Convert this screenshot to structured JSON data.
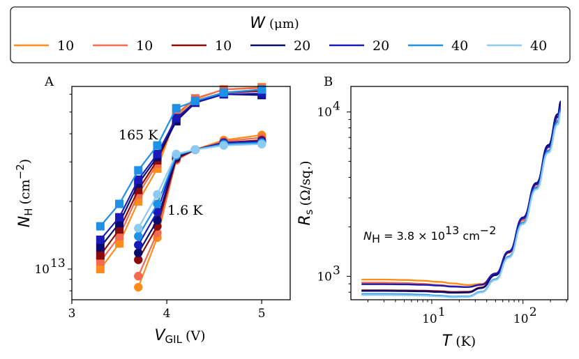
{
  "legend": {
    "title": "W",
    "title_unit": "(μm)",
    "entries": [
      {
        "label": "10",
        "color": "#ff8c1a"
      },
      {
        "label": "10",
        "color": "#f26b4f"
      },
      {
        "label": "10",
        "color": "#8b0a0a"
      },
      {
        "label": "20",
        "color": "#0a0a6e"
      },
      {
        "label": "20",
        "color": "#1a1ab8"
      },
      {
        "label": "40",
        "color": "#1e90e8"
      },
      {
        "label": "40",
        "color": "#8ccaf0"
      }
    ]
  },
  "chart_data": [
    {
      "type": "line",
      "panel": "A",
      "xlabel_main": "V",
      "xlabel_sub": "GIL",
      "xlabel_unit": "(V)",
      "ylabel_main": "N",
      "ylabel_sub": "H",
      "ylabel_unit": "(cm",
      "ylabel_exp": "−2",
      "ylabel_close": ")",
      "yscale": "log",
      "xlim": [
        3.0,
        5.3
      ],
      "ylim": [
        7300000000000.0,
        65000000000000.0
      ],
      "xticks": [
        {
          "value": 3,
          "label": "3"
        },
        {
          "value": 4,
          "label": "4"
        },
        {
          "value": 5,
          "label": "5"
        }
      ],
      "yticks": [
        {
          "value": 10000000000000.0,
          "base": "10",
          "exp": "13"
        }
      ],
      "annotations": [
        {
          "text": "165 K",
          "x": 3.65,
          "y": 39500000000000.0
        },
        {
          "text": "1.6 K",
          "x": 4.02,
          "y": 17800000000000.0
        }
      ],
      "series_165K": [
        {
          "name": "10 μm",
          "color": "#ff8c1a",
          "x": [
            3.3,
            3.5,
            3.7,
            3.9,
            4.1,
            4.3,
            4.6,
            5.0
          ],
          "y": [
            10000000000000.0,
            13000000000000.0,
            20000000000000.0,
            28000000000000.0,
            48000000000000.0,
            57000000000000.0,
            63000000000000.0,
            64500000000000.0
          ]
        },
        {
          "name": "10 μm",
          "color": "#f26b4f",
          "x": [
            3.3,
            3.5,
            3.7,
            3.9,
            4.1,
            4.3,
            4.6,
            5.0
          ],
          "y": [
            10800000000000.0,
            14000000000000.0,
            21500000000000.0,
            29500000000000.0,
            49000000000000.0,
            57500000000000.0,
            63000000000000.0,
            64000000000000.0
          ]
        },
        {
          "name": "10 μm",
          "color": "#8b0a0a",
          "x": [
            3.3,
            3.5,
            3.7,
            3.9,
            4.1,
            4.3,
            4.6,
            5.0
          ],
          "y": [
            11500000000000.0,
            15000000000000.0,
            22500000000000.0,
            30500000000000.0,
            46000000000000.0,
            56000000000000.0,
            61000000000000.0,
            62000000000000.0
          ]
        },
        {
          "name": "20 μm",
          "color": "#0a0a6e",
          "x": [
            3.3,
            3.5,
            3.7,
            3.9,
            4.1,
            4.3,
            4.6,
            5.0
          ],
          "y": [
            12500000000000.0,
            16000000000000.0,
            24000000000000.0,
            31500000000000.0,
            45500000000000.0,
            55000000000000.0,
            60000000000000.0,
            59500000000000.0
          ]
        },
        {
          "name": "20 μm",
          "color": "#1a1ab8",
          "x": [
            3.3,
            3.5,
            3.7,
            3.9,
            4.1,
            4.3,
            4.6,
            5.0
          ],
          "y": [
            13500000000000.0,
            17000000000000.0,
            25000000000000.0,
            32500000000000.0,
            47000000000000.0,
            55500000000000.0,
            60000000000000.0,
            60500000000000.0
          ]
        },
        {
          "name": "40 μm",
          "color": "#1e90e8",
          "x": [
            3.3,
            3.5,
            3.7,
            3.9,
            4.1,
            4.3,
            4.6,
            5.0
          ],
          "y": [
            15500000000000.0,
            19500000000000.0,
            27500000000000.0,
            35500000000000.0,
            52000000000000.0,
            56000000000000.0,
            61000000000000.0,
            63000000000000.0
          ]
        }
      ],
      "series_1p6K": [
        {
          "name": "10 μm",
          "color": "#ff8c1a",
          "x": [
            3.7,
            3.9,
            4.1,
            4.3,
            4.6,
            5.0
          ],
          "y": [
            8300000000000.0,
            13800000000000.0,
            31000000000000.0,
            34000000000000.0,
            37500000000000.0,
            39500000000000.0
          ]
        },
        {
          "name": "10 μm",
          "color": "#f26b4f",
          "x": [
            3.7,
            3.9,
            4.1,
            4.3,
            4.6,
            5.0
          ],
          "y": [
            9300000000000.0,
            14500000000000.0,
            30500000000000.0,
            34000000000000.0,
            37000000000000.0,
            38500000000000.0
          ]
        },
        {
          "name": "10 μm",
          "color": "#8b0a0a",
          "x": [
            3.7,
            3.9,
            4.1,
            4.3,
            4.6,
            5.0
          ],
          "y": [
            11000000000000.0,
            15500000000000.0,
            31000000000000.0,
            34000000000000.0,
            36500000000000.0,
            37500000000000.0
          ]
        },
        {
          "name": "20 μm",
          "color": "#0a0a6e",
          "x": [
            3.7,
            3.9,
            4.1,
            4.3,
            4.6,
            5.0
          ],
          "y": [
            11800000000000.0,
            16500000000000.0,
            31500000000000.0,
            34000000000000.0,
            36500000000000.0,
            37000000000000.0
          ]
        },
        {
          "name": "20 μm",
          "color": "#1a1ab8",
          "x": [
            3.7,
            3.9,
            4.1,
            4.3,
            4.6,
            5.0
          ],
          "y": [
            12800000000000.0,
            18000000000000.0,
            32000000000000.0,
            34000000000000.0,
            36500000000000.0,
            37000000000000.0
          ]
        },
        {
          "name": "40 μm",
          "color": "#1e90e8",
          "x": [
            3.7,
            3.9,
            4.1,
            4.3,
            4.6,
            5.0
          ],
          "y": [
            14000000000000.0,
            19500000000000.0,
            32000000000000.0,
            34000000000000.0,
            36000000000000.0,
            36500000000000.0
          ]
        },
        {
          "name": "40 μm",
          "color": "#8ccaf0",
          "x": [
            3.7,
            3.9,
            4.1,
            4.3,
            4.6,
            5.0
          ],
          "y": [
            15200000000000.0,
            21500000000000.0,
            32500000000000.0,
            34000000000000.0,
            35500000000000.0,
            36000000000000.0
          ]
        }
      ]
    },
    {
      "type": "line",
      "panel": "B",
      "xscale": "log",
      "yscale": "log",
      "xlabel_main": "T",
      "xlabel_unit": "(K)",
      "ylabel_main": "R",
      "ylabel_sub": "s",
      "ylabel_unit": "(Ω/sq.)",
      "xlim": [
        1.3,
        310
      ],
      "ylim": [
        720,
        14300
      ],
      "xticks": [
        {
          "value": 10,
          "base": "10",
          "exp": "1"
        },
        {
          "value": 100,
          "base": "10",
          "exp": "2"
        }
      ],
      "yticks": [
        {
          "value": 1000,
          "base": "10",
          "exp": "3"
        },
        {
          "value": 10000,
          "base": "10",
          "exp": "4"
        }
      ],
      "annotation": {
        "prefix": "N",
        "sub": "H",
        "mid": " = 3.8 × 10",
        "exp": "13",
        "unit": " cm",
        "unit_exp": "−2"
      },
      "x": [
        1.7,
        3,
        5,
        8,
        12,
        17,
        25,
        35,
        50,
        70,
        100,
        140,
        190,
        240,
        260
      ],
      "series": [
        {
          "name": "10 μm",
          "color": "#ff8c1a",
          "y": [
            955,
            955,
            950,
            940,
            925,
            905,
            885,
            900,
            1040,
            1400,
            2200,
            3500,
            5800,
            8800,
            10300
          ]
        },
        {
          "name": "10 μm",
          "color": "#f26b4f",
          "y": [
            915,
            915,
            910,
            900,
            885,
            870,
            860,
            885,
            1030,
            1390,
            2190,
            3500,
            5850,
            8900,
            10500
          ]
        },
        {
          "name": "10 μm",
          "color": "#8b0a0a",
          "y": [
            822,
            822,
            820,
            818,
            812,
            803,
            805,
            855,
            1020,
            1400,
            2250,
            3650,
            6150,
            9400,
            11200
          ]
        },
        {
          "name": "20 μm",
          "color": "#0a0a6e",
          "y": [
            815,
            815,
            813,
            810,
            803,
            794,
            797,
            848,
            1015,
            1410,
            2280,
            3700,
            6300,
            9700,
            11600
          ]
        },
        {
          "name": "20 μm",
          "color": "#1a1ab8",
          "y": [
            895,
            895,
            893,
            888,
            878,
            865,
            860,
            890,
            1040,
            1420,
            2250,
            3620,
            6100,
            9300,
            11000
          ]
        },
        {
          "name": "40 μm",
          "color": "#1e90e8",
          "y": [
            780,
            780,
            778,
            772,
            762,
            752,
            755,
            805,
            960,
            1320,
            2120,
            3450,
            5800,
            8700,
            10300
          ]
        },
        {
          "name": "40 μm",
          "color": "#8ccaf0",
          "y": [
            770,
            770,
            768,
            763,
            755,
            746,
            750,
            798,
            950,
            1300,
            2080,
            3380,
            5650,
            8400,
            9900
          ]
        }
      ]
    }
  ]
}
